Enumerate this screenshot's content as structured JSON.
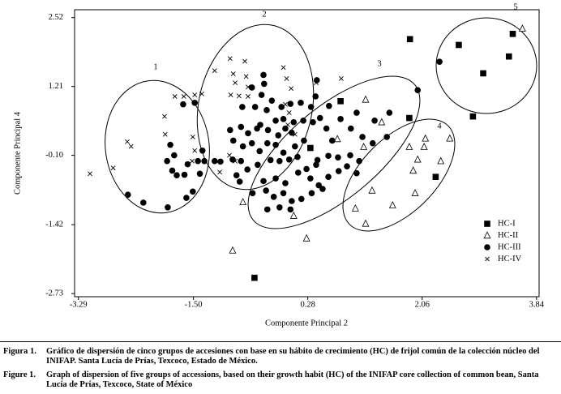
{
  "chart_data": {
    "type": "scatter",
    "xlabel": "Componente Principal 2",
    "ylabel": "Componente Principal 4",
    "xlim": [
      -3.35,
      3.88
    ],
    "ylim": [
      -2.79,
      2.67
    ],
    "xticks": [
      -3.29,
      {
        "value": -1.5,
        "label": "-1.50"
      },
      0.28,
      2.06,
      3.84
    ],
    "yticks": [
      2.52,
      1.21,
      {
        "value": -0.1,
        "label": "-0.10"
      },
      -1.42,
      -2.73
    ],
    "grid": false,
    "legend": "lower right",
    "annotations": [
      "1",
      "2",
      "3",
      "4",
      "5"
    ],
    "series": [
      {
        "name": "HC-I",
        "marker": "square",
        "color": "#000000",
        "x": [
          1.87,
          2.63,
          3.47,
          3.41,
          3.01,
          2.85,
          0.79,
          1.86,
          0.32,
          2.27,
          -0.55
        ],
        "values": [
          2.11,
          2.0,
          2.21,
          1.78,
          1.46,
          0.64,
          0.93,
          0.61,
          0.04,
          -0.51,
          -2.43
        ]
      },
      {
        "name": "HC-II",
        "marker": "triangle",
        "color": "#000000",
        "x": [
          3.62,
          1.18,
          1.43,
          0.74,
          1.15,
          2.11,
          2.49,
          1.86,
          2.09,
          1.99,
          1.92,
          2.35,
          1.95,
          1.28,
          1.6,
          1.02,
          1.18,
          -0.73,
          0.06,
          0.26,
          -0.89
        ],
        "values": [
          2.31,
          0.96,
          0.53,
          0.21,
          0.06,
          0.22,
          0.22,
          0.06,
          0.06,
          -0.18,
          -0.39,
          -0.21,
          -0.82,
          -0.77,
          -1.05,
          -1.11,
          -1.4,
          -0.99,
          -1.25,
          -1.68,
          -1.91
        ]
      },
      {
        "name": "HC-III",
        "marker": "circle",
        "color": "#000000",
        "x": [
          -1.48,
          -1.66,
          -1.86,
          -1.8,
          -1.91,
          -1.83,
          -1.76,
          -1.59,
          -1.43,
          -1.36,
          -1.17,
          -1.51,
          -1.61,
          -1.9,
          -2.28,
          -2.52,
          -1.4,
          -1.64,
          -1.33,
          -0.41,
          -0.4,
          -0.59,
          -0.44,
          -0.28,
          -0.13,
          0.01,
          0.17,
          0.33,
          -0.74,
          -0.54,
          -0.36,
          -0.22,
          -0.1,
          0.06,
          0.21,
          0.36,
          0.47,
          -0.93,
          -0.76,
          -0.65,
          -0.51,
          -0.46,
          -0.34,
          -0.18,
          -0.07,
          0.03,
          -0.88,
          -0.73,
          -0.59,
          -0.47,
          -0.35,
          -0.22,
          -0.1,
          -0.89,
          -0.76,
          -0.66,
          -0.5,
          -0.3,
          -0.16,
          -0.01,
          0.12,
          0.26,
          0.43,
          0.6,
          0.75,
          0.94,
          1.08,
          0.42,
          0.4,
          0.61,
          0.79,
          1.04,
          1.32,
          1.55,
          1.99,
          2.33,
          0.95,
          1.13,
          1.29,
          1.51,
          0.57,
          0.66,
          0.22,
          -0.41,
          -0.22,
          -0.07,
          0.13,
          0.32,
          0.45,
          0.6,
          0.76,
          0.89,
          1.04,
          -0.58,
          -0.37,
          -0.25,
          -0.1,
          0.03,
          0.18,
          0.34,
          0.51,
          -0.16,
          0.01,
          -0.35,
          0.41,
          0.08,
          -1.08,
          -0.83,
          -0.78
        ],
        "values": [
          0.9,
          0.87,
          0.1,
          -0.1,
          -0.21,
          -0.39,
          -0.48,
          -0.27,
          -0.21,
          -0.01,
          -0.21,
          -0.79,
          -0.91,
          -1.09,
          -1.0,
          -0.85,
          -0.45,
          -0.47,
          -0.21,
          1.43,
          1.26,
          1.19,
          1.05,
          0.94,
          0.82,
          0.88,
          0.9,
          0.82,
          0.82,
          0.82,
          0.76,
          0.56,
          0.59,
          0.53,
          0.56,
          0.53,
          0.61,
          0.38,
          0.44,
          0.32,
          0.41,
          0.48,
          0.38,
          0.28,
          0.41,
          0.33,
          0.18,
          0.07,
          0.13,
          -0.02,
          0.13,
          0.1,
          -0.05,
          -0.18,
          -0.21,
          -0.37,
          -0.28,
          -0.19,
          -0.21,
          -0.18,
          -0.13,
          -0.36,
          -0.19,
          -0.11,
          -0.14,
          -0.1,
          -0.21,
          1.33,
          1.02,
          0.84,
          0.59,
          0.71,
          0.56,
          0.71,
          1.14,
          1.68,
          0.41,
          0.25,
          0.13,
          0.25,
          0.41,
          0.18,
          0.18,
          -0.59,
          -0.54,
          -0.63,
          -0.43,
          -0.54,
          -0.67,
          -0.51,
          -0.4,
          -0.31,
          -0.44,
          -0.82,
          -0.77,
          -0.89,
          -0.82,
          -0.97,
          -0.93,
          -0.82,
          -0.74,
          -1.09,
          -1.13,
          -1.13,
          -0.28,
          0.07,
          -0.22,
          -0.48,
          -0.6
        ]
      },
      {
        "name": "HC-IV",
        "marker": "x",
        "color": "#000000",
        "x": [
          -3.11,
          -2.75,
          -2.53,
          -2.47,
          -1.95,
          -1.94,
          -1.79,
          -1.65,
          -1.48,
          -1.37,
          -1.51,
          -1.48,
          -1.52,
          -1.09,
          -1.17,
          -0.93,
          -0.7,
          -0.88,
          -0.85,
          -0.68,
          -0.65,
          -0.92,
          -0.79,
          -0.65,
          -0.1,
          -0.05,
          0.02,
          0.41,
          0.8,
          -0.07,
          -0.01,
          -0.03,
          0.08,
          -0.94,
          -0.85
        ],
        "values": [
          -0.45,
          -0.34,
          0.16,
          0.07,
          0.64,
          0.3,
          1.02,
          1.02,
          1.05,
          1.07,
          0.25,
          -0.01,
          -0.21,
          -0.42,
          1.51,
          1.74,
          1.69,
          1.45,
          1.28,
          1.4,
          1.2,
          1.05,
          1.03,
          1.02,
          1.57,
          1.36,
          1.17,
          1.28,
          1.36,
          0.87,
          0.71,
          0.48,
          0.3,
          -0.1,
          -0.21
        ]
      }
    ]
  },
  "caption": {
    "es_label": "Figura 1.",
    "es_text": "Gráfico de dispersión de cinco grupos de accesiones con base en su hábito de crecimiento (HC) de frijol común de la colección núcleo del INIFAP. Santa Lucía de Prías, Texcoco, Estado de México.",
    "en_label": "Figure 1.",
    "en_text": "Graph of dispersion of five groups of accessions, based on their growth habit (HC) of the INIFAP core collection of common bean, Santa Lucía de Prías, Texcoco, State of México"
  }
}
